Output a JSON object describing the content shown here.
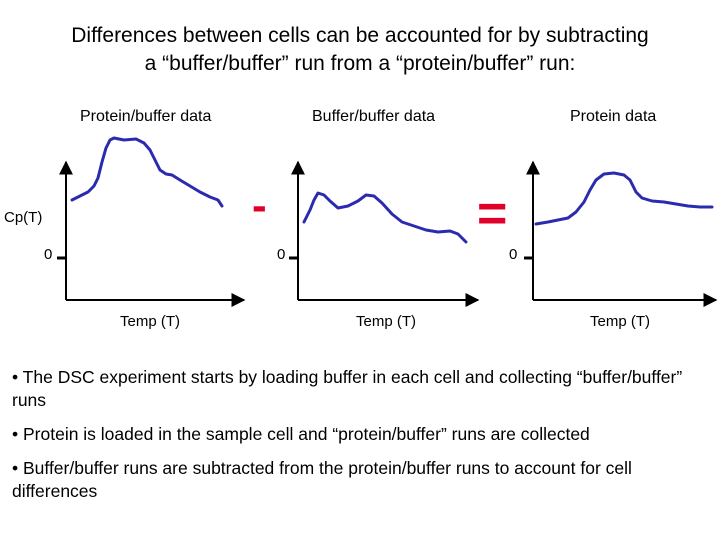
{
  "title_line1": "Differences between cells can be accounted for by subtracting",
  "title_line2": "a “buffer/buffer” run from a “protein/buffer” run:",
  "panels": [
    {
      "title": "Protein/buffer data",
      "xlabel": "Temp (T)",
      "zero": "0"
    },
    {
      "title": "Buffer/buffer data",
      "xlabel": "Temp (T)",
      "zero": "0"
    },
    {
      "title": "Protein data",
      "xlabel": "Temp (T)",
      "zero": "0"
    }
  ],
  "ylabel": "Cp(T)",
  "operators": {
    "minus": "-",
    "equals": "="
  },
  "colors": {
    "curve": "#2b2bb0",
    "operator": "#e0002a",
    "axis": "#000000"
  },
  "bullets": [
    "• The DSC experiment starts by loading buffer in each cell and collecting “buffer/buffer” runs",
    "• Protein is loaded in the sample cell and “protein/buffer” runs are collected",
    "• Buffer/buffer runs are subtracted from the protein/buffer runs to account for cell differences"
  ]
}
